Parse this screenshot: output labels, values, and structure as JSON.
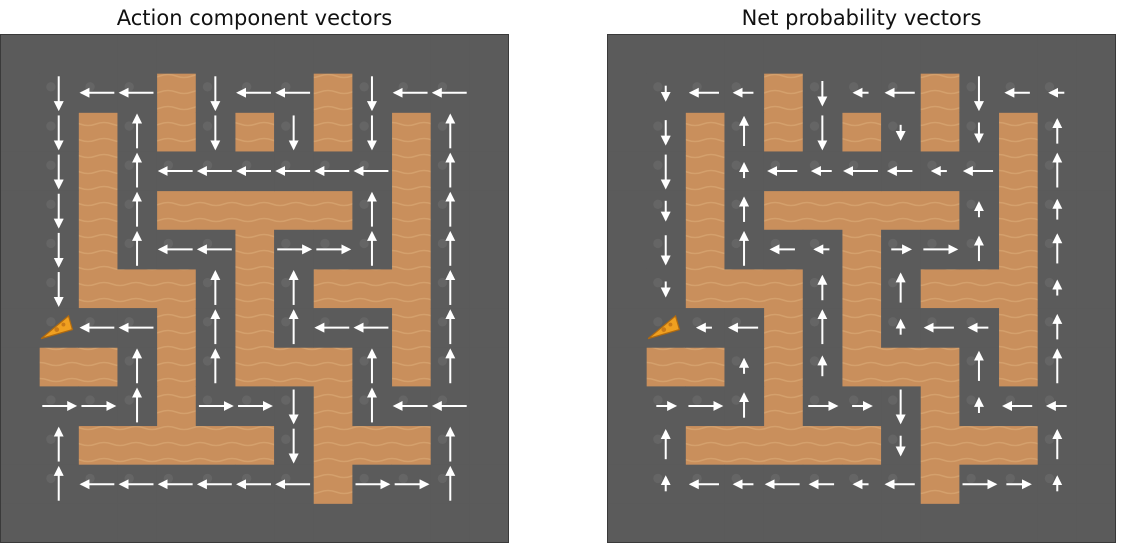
{
  "panels": [
    {
      "title": "Action component vectors",
      "mode": "component"
    },
    {
      "title": "Net probability vectors",
      "mode": "net"
    }
  ],
  "colors": {
    "wall": "#c98f5c",
    "wall_ripple": "#d9a673",
    "path": "#5b5b5b",
    "path_light": "#707070",
    "frame": "#3a3a3a",
    "arrow": "#ffffff",
    "cheese": "#f0a020"
  },
  "maze": {
    "size": 13,
    "grid": [
      "#############",
      "#...#...#...#",
      "#.#.#.#.#.#.#",
      "#.#.......#.#",
      "#.#.#####.#.#",
      "#.#...#...#.#",
      "#.###.#.###.#",
      "#...#.#...#.#",
      "###.#.###.#.#",
      "#...#...#...#",
      "#.#####.###.#",
      "#.......#...#",
      "#############"
    ],
    "cheese_icon": "cheese-icon"
  }
}
